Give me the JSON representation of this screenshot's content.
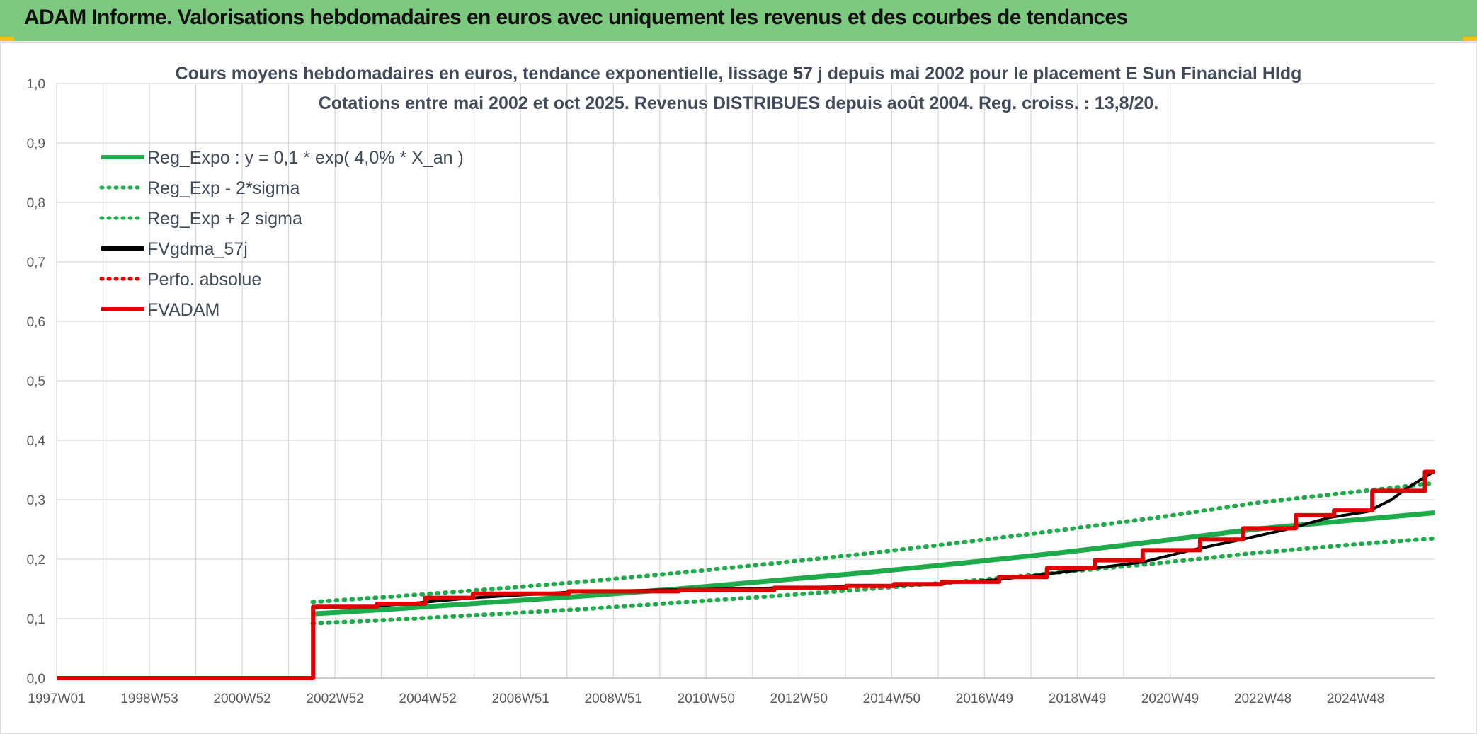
{
  "header": {
    "title": "ADAM Informe. Valorisations hebdomadaires en euros avec uniquement les revenus et des courbes de tendances"
  },
  "chart_data": {
    "type": "line",
    "title": "Cours moyens hebdomadaires en euros, tendance exponentielle, lissage 57 j depuis mai 2002 pour le placement E Sun Financial Hldg",
    "subtitle": "Cotations entre mai 2002 et oct 2025. Revenus DISTRIBUES depuis août 2004. Reg. croiss. : 13,8/20.",
    "xlabel": "",
    "ylabel": "",
    "x_ticks": [
      "1997W01",
      "1998W53",
      "2000W52",
      "2002W52",
      "2004W52",
      "2006W51",
      "2008W51",
      "2010W50",
      "2012W50",
      "2014W50",
      "2016W49",
      "2018W49",
      "2020W49",
      "2022W48",
      "2024W48"
    ],
    "y_ticks": [
      "0,0",
      "0,1",
      "0,2",
      "0,3",
      "0,4",
      "0,5",
      "0,6",
      "0,7",
      "0,8",
      "0,9",
      "1,0"
    ],
    "xlim": [
      1997.0,
      2025.8
    ],
    "ylim": [
      0,
      1.0
    ],
    "grid": true,
    "legend_position": "top-left",
    "series": [
      {
        "name": "Reg_Expo : y = 0,1 * exp( 4,0% *  X_an )",
        "color": "#1faa4b",
        "style": "solid",
        "x": [
          2002.35,
          2004,
          2006,
          2008,
          2010,
          2012,
          2014,
          2016,
          2018,
          2020,
          2022,
          2024,
          2025.8
        ],
        "y": [
          0.108,
          0.116,
          0.127,
          0.138,
          0.15,
          0.164,
          0.178,
          0.194,
          0.211,
          0.23,
          0.25,
          0.265,
          0.278
        ]
      },
      {
        "name": "Reg_Exp - 2*sigma",
        "color": "#1faa4b",
        "style": "dotted",
        "x": [
          2002.35,
          2004,
          2006,
          2008,
          2010,
          2012,
          2014,
          2016,
          2018,
          2020,
          2022,
          2024,
          2025.8
        ],
        "y": [
          0.092,
          0.098,
          0.107,
          0.116,
          0.127,
          0.138,
          0.15,
          0.163,
          0.178,
          0.193,
          0.21,
          0.224,
          0.235
        ]
      },
      {
        "name": "Reg_Exp + 2 sigma",
        "color": "#1faa4b",
        "style": "dotted",
        "x": [
          2002.35,
          2004,
          2006,
          2008,
          2010,
          2012,
          2014,
          2016,
          2018,
          2020,
          2022,
          2024,
          2025.8
        ],
        "y": [
          0.128,
          0.137,
          0.149,
          0.162,
          0.177,
          0.193,
          0.21,
          0.229,
          0.249,
          0.27,
          0.294,
          0.312,
          0.328
        ]
      },
      {
        "name": "FVgdma_57j",
        "color": "#000000",
        "style": "solid",
        "x": [
          1997.0,
          2002.35,
          2002.36,
          2003.5,
          2004.6,
          2005.7,
          2007.8,
          2009.5,
          2011.0,
          2013.0,
          2015.0,
          2016.6,
          2017.7,
          2018.7,
          2019.7,
          2020.7,
          2021.7,
          2022.7,
          2023.6,
          2024.4,
          2024.9,
          2025.2,
          2025.8
        ],
        "y": [
          0.0,
          0.0,
          0.118,
          0.12,
          0.127,
          0.135,
          0.145,
          0.148,
          0.15,
          0.153,
          0.157,
          0.165,
          0.175,
          0.185,
          0.195,
          0.215,
          0.232,
          0.25,
          0.27,
          0.28,
          0.3,
          0.318,
          0.348
        ]
      },
      {
        "name": "Perfo. absolue",
        "color": "#e00000",
        "style": "dotted",
        "x": [],
        "y": []
      },
      {
        "name": "FVADAM",
        "color": "#e00000",
        "style": "step",
        "x": [
          1997.0,
          2002.35,
          2002.36,
          2003.7,
          2004.7,
          2005.7,
          2007.7,
          2010.0,
          2012.0,
          2013.5,
          2014.5,
          2015.5,
          2016.7,
          2017.7,
          2018.7,
          2019.7,
          2020.9,
          2021.8,
          2022.9,
          2023.7,
          2024.5,
          2025.6,
          2025.8
        ],
        "y": [
          0.0,
          0.0,
          0.12,
          0.125,
          0.135,
          0.142,
          0.146,
          0.148,
          0.152,
          0.155,
          0.158,
          0.162,
          0.17,
          0.185,
          0.198,
          0.215,
          0.233,
          0.252,
          0.274,
          0.282,
          0.315,
          0.347,
          0.347
        ]
      }
    ]
  }
}
